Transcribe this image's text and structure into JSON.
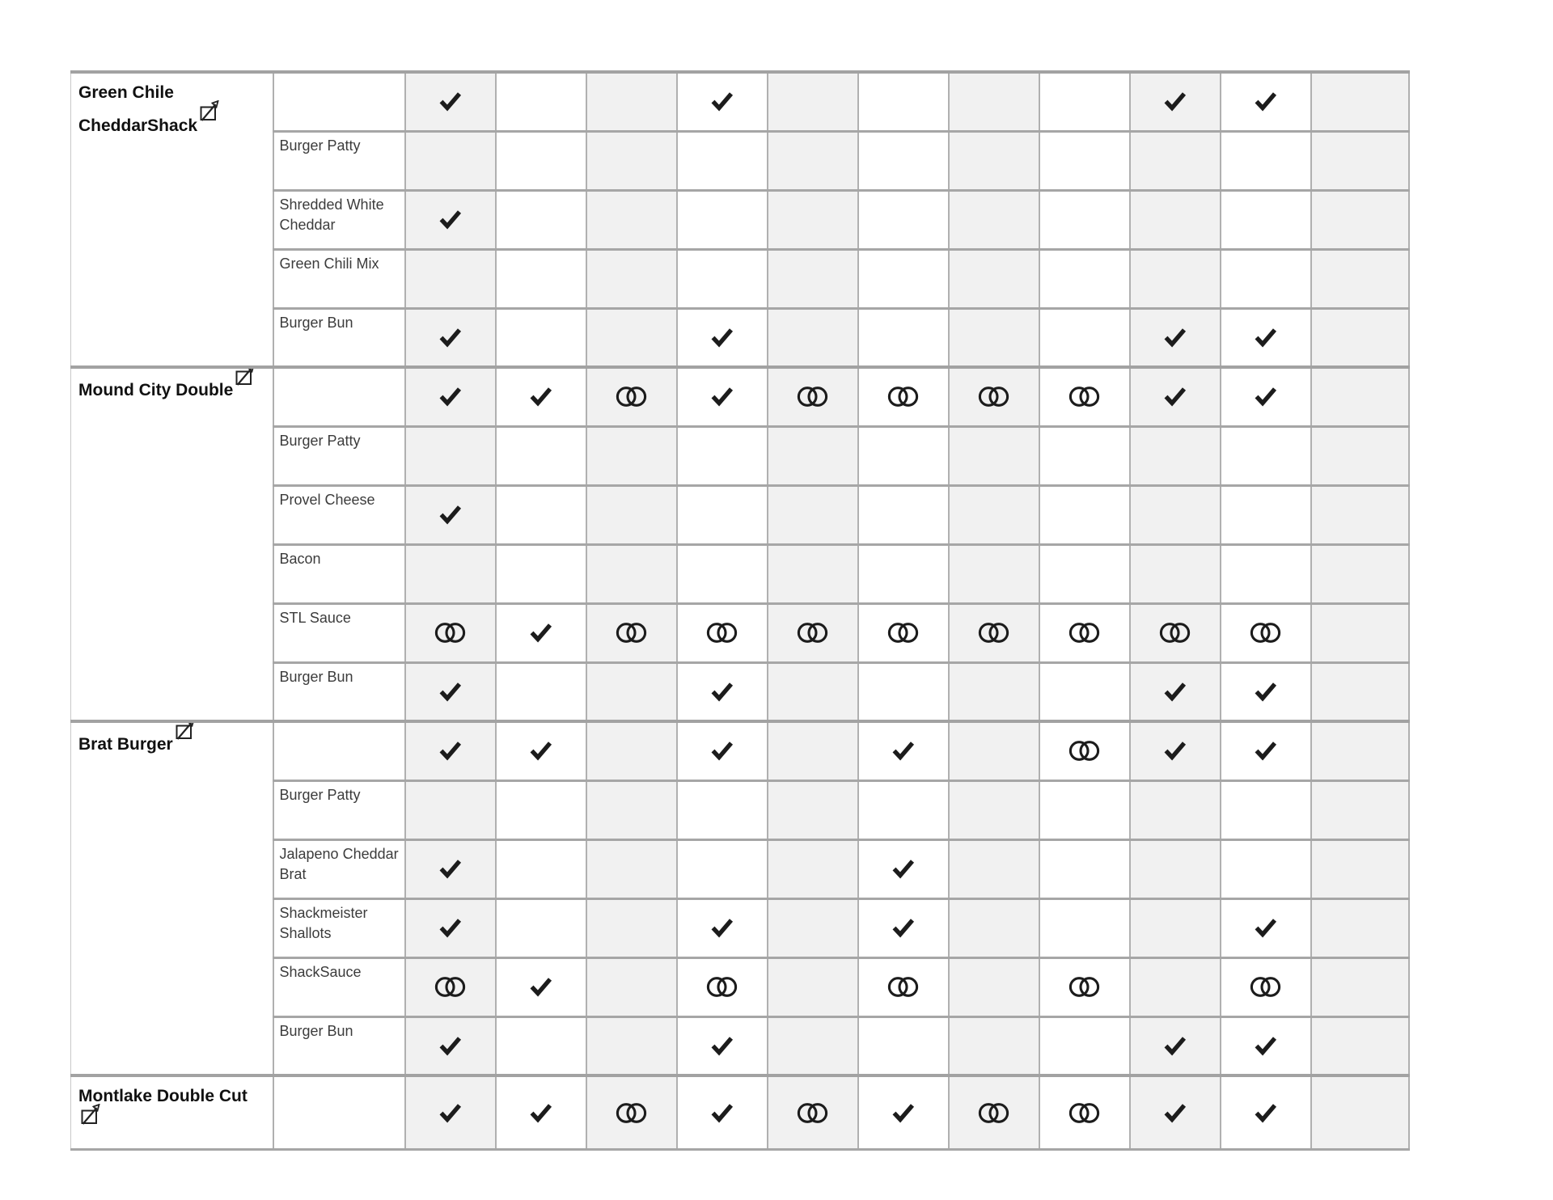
{
  "page": {
    "background": "#ffffff"
  },
  "colors": {
    "cell_shade": "#f1f1f1",
    "cell_white": "#ffffff",
    "grid_vertical_line": "#b0b0b0",
    "grid_horizontal_line": "#a6a6a6",
    "group_divider_line": "#a2a2a2",
    "mark": "#1c1c1c",
    "burger_name_text": "#111111",
    "ingredient_text": "#3c3c3c"
  },
  "symbols": {
    "check": "check-mark-icon",
    "rings": "interlocking-rings-icon",
    "edit": "edit-icon"
  },
  "table": {
    "data_column_count": 11,
    "groups": [
      {
        "name": "Green Chile CheddarShack",
        "icon": "edit-icon",
        "header_marks": [
          "check",
          "",
          "",
          "check",
          "",
          "",
          "",
          "",
          "check",
          "check",
          ""
        ],
        "ingredients": [
          {
            "name": "Burger Patty",
            "marks": [
              "",
              "",
              "",
              "",
              "",
              "",
              "",
              "",
              "",
              "",
              ""
            ]
          },
          {
            "name": "Shredded White Cheddar",
            "marks": [
              "check",
              "",
              "",
              "",
              "",
              "",
              "",
              "",
              "",
              "",
              ""
            ]
          },
          {
            "name": "Green Chili Mix",
            "marks": [
              "",
              "",
              "",
              "",
              "",
              "",
              "",
              "",
              "",
              "",
              ""
            ]
          },
          {
            "name": "Burger Bun",
            "marks": [
              "check",
              "",
              "",
              "check",
              "",
              "",
              "",
              "",
              "check",
              "check",
              ""
            ]
          }
        ]
      },
      {
        "name": "Mound City Double",
        "icon": "edit-icon",
        "header_marks": [
          "check",
          "check",
          "rings",
          "check",
          "rings",
          "rings",
          "rings",
          "rings",
          "check",
          "check",
          ""
        ],
        "ingredients": [
          {
            "name": "Burger Patty",
            "marks": [
              "",
              "",
              "",
              "",
              "",
              "",
              "",
              "",
              "",
              "",
              ""
            ]
          },
          {
            "name": "Provel Cheese",
            "marks": [
              "check",
              "",
              "",
              "",
              "",
              "",
              "",
              "",
              "",
              "",
              ""
            ]
          },
          {
            "name": "Bacon",
            "marks": [
              "",
              "",
              "",
              "",
              "",
              "",
              "",
              "",
              "",
              "",
              ""
            ]
          },
          {
            "name": "STL Sauce",
            "marks": [
              "rings",
              "check",
              "rings",
              "rings",
              "rings",
              "rings",
              "rings",
              "rings",
              "rings",
              "rings",
              ""
            ]
          },
          {
            "name": "Burger Bun",
            "marks": [
              "check",
              "",
              "",
              "check",
              "",
              "",
              "",
              "",
              "check",
              "check",
              ""
            ]
          }
        ]
      },
      {
        "name": "Brat Burger",
        "icon": "edit-icon",
        "header_marks": [
          "check",
          "check",
          "",
          "check",
          "",
          "check",
          "",
          "rings",
          "check",
          "check",
          ""
        ],
        "ingredients": [
          {
            "name": "Burger Patty",
            "marks": [
              "",
              "",
              "",
              "",
              "",
              "",
              "",
              "",
              "",
              "",
              ""
            ]
          },
          {
            "name": "Jalapeno Cheddar Brat",
            "marks": [
              "check",
              "",
              "",
              "",
              "",
              "check",
              "",
              "",
              "",
              "",
              ""
            ]
          },
          {
            "name": "Shackmeister Shallots",
            "marks": [
              "check",
              "",
              "",
              "check",
              "",
              "check",
              "",
              "",
              "",
              "check",
              ""
            ]
          },
          {
            "name": "ShackSauce",
            "marks": [
              "rings",
              "check",
              "",
              "rings",
              "",
              "rings",
              "",
              "rings",
              "",
              "rings",
              ""
            ]
          },
          {
            "name": "Burger Bun",
            "marks": [
              "check",
              "",
              "",
              "check",
              "",
              "",
              "",
              "",
              "check",
              "check",
              ""
            ]
          }
        ]
      },
      {
        "name": "Montlake Double Cut",
        "icon": "edit-icon",
        "header_marks": [
          "check",
          "check",
          "rings",
          "check",
          "rings",
          "check",
          "rings",
          "rings",
          "check",
          "check",
          ""
        ],
        "ingredients": []
      }
    ]
  }
}
